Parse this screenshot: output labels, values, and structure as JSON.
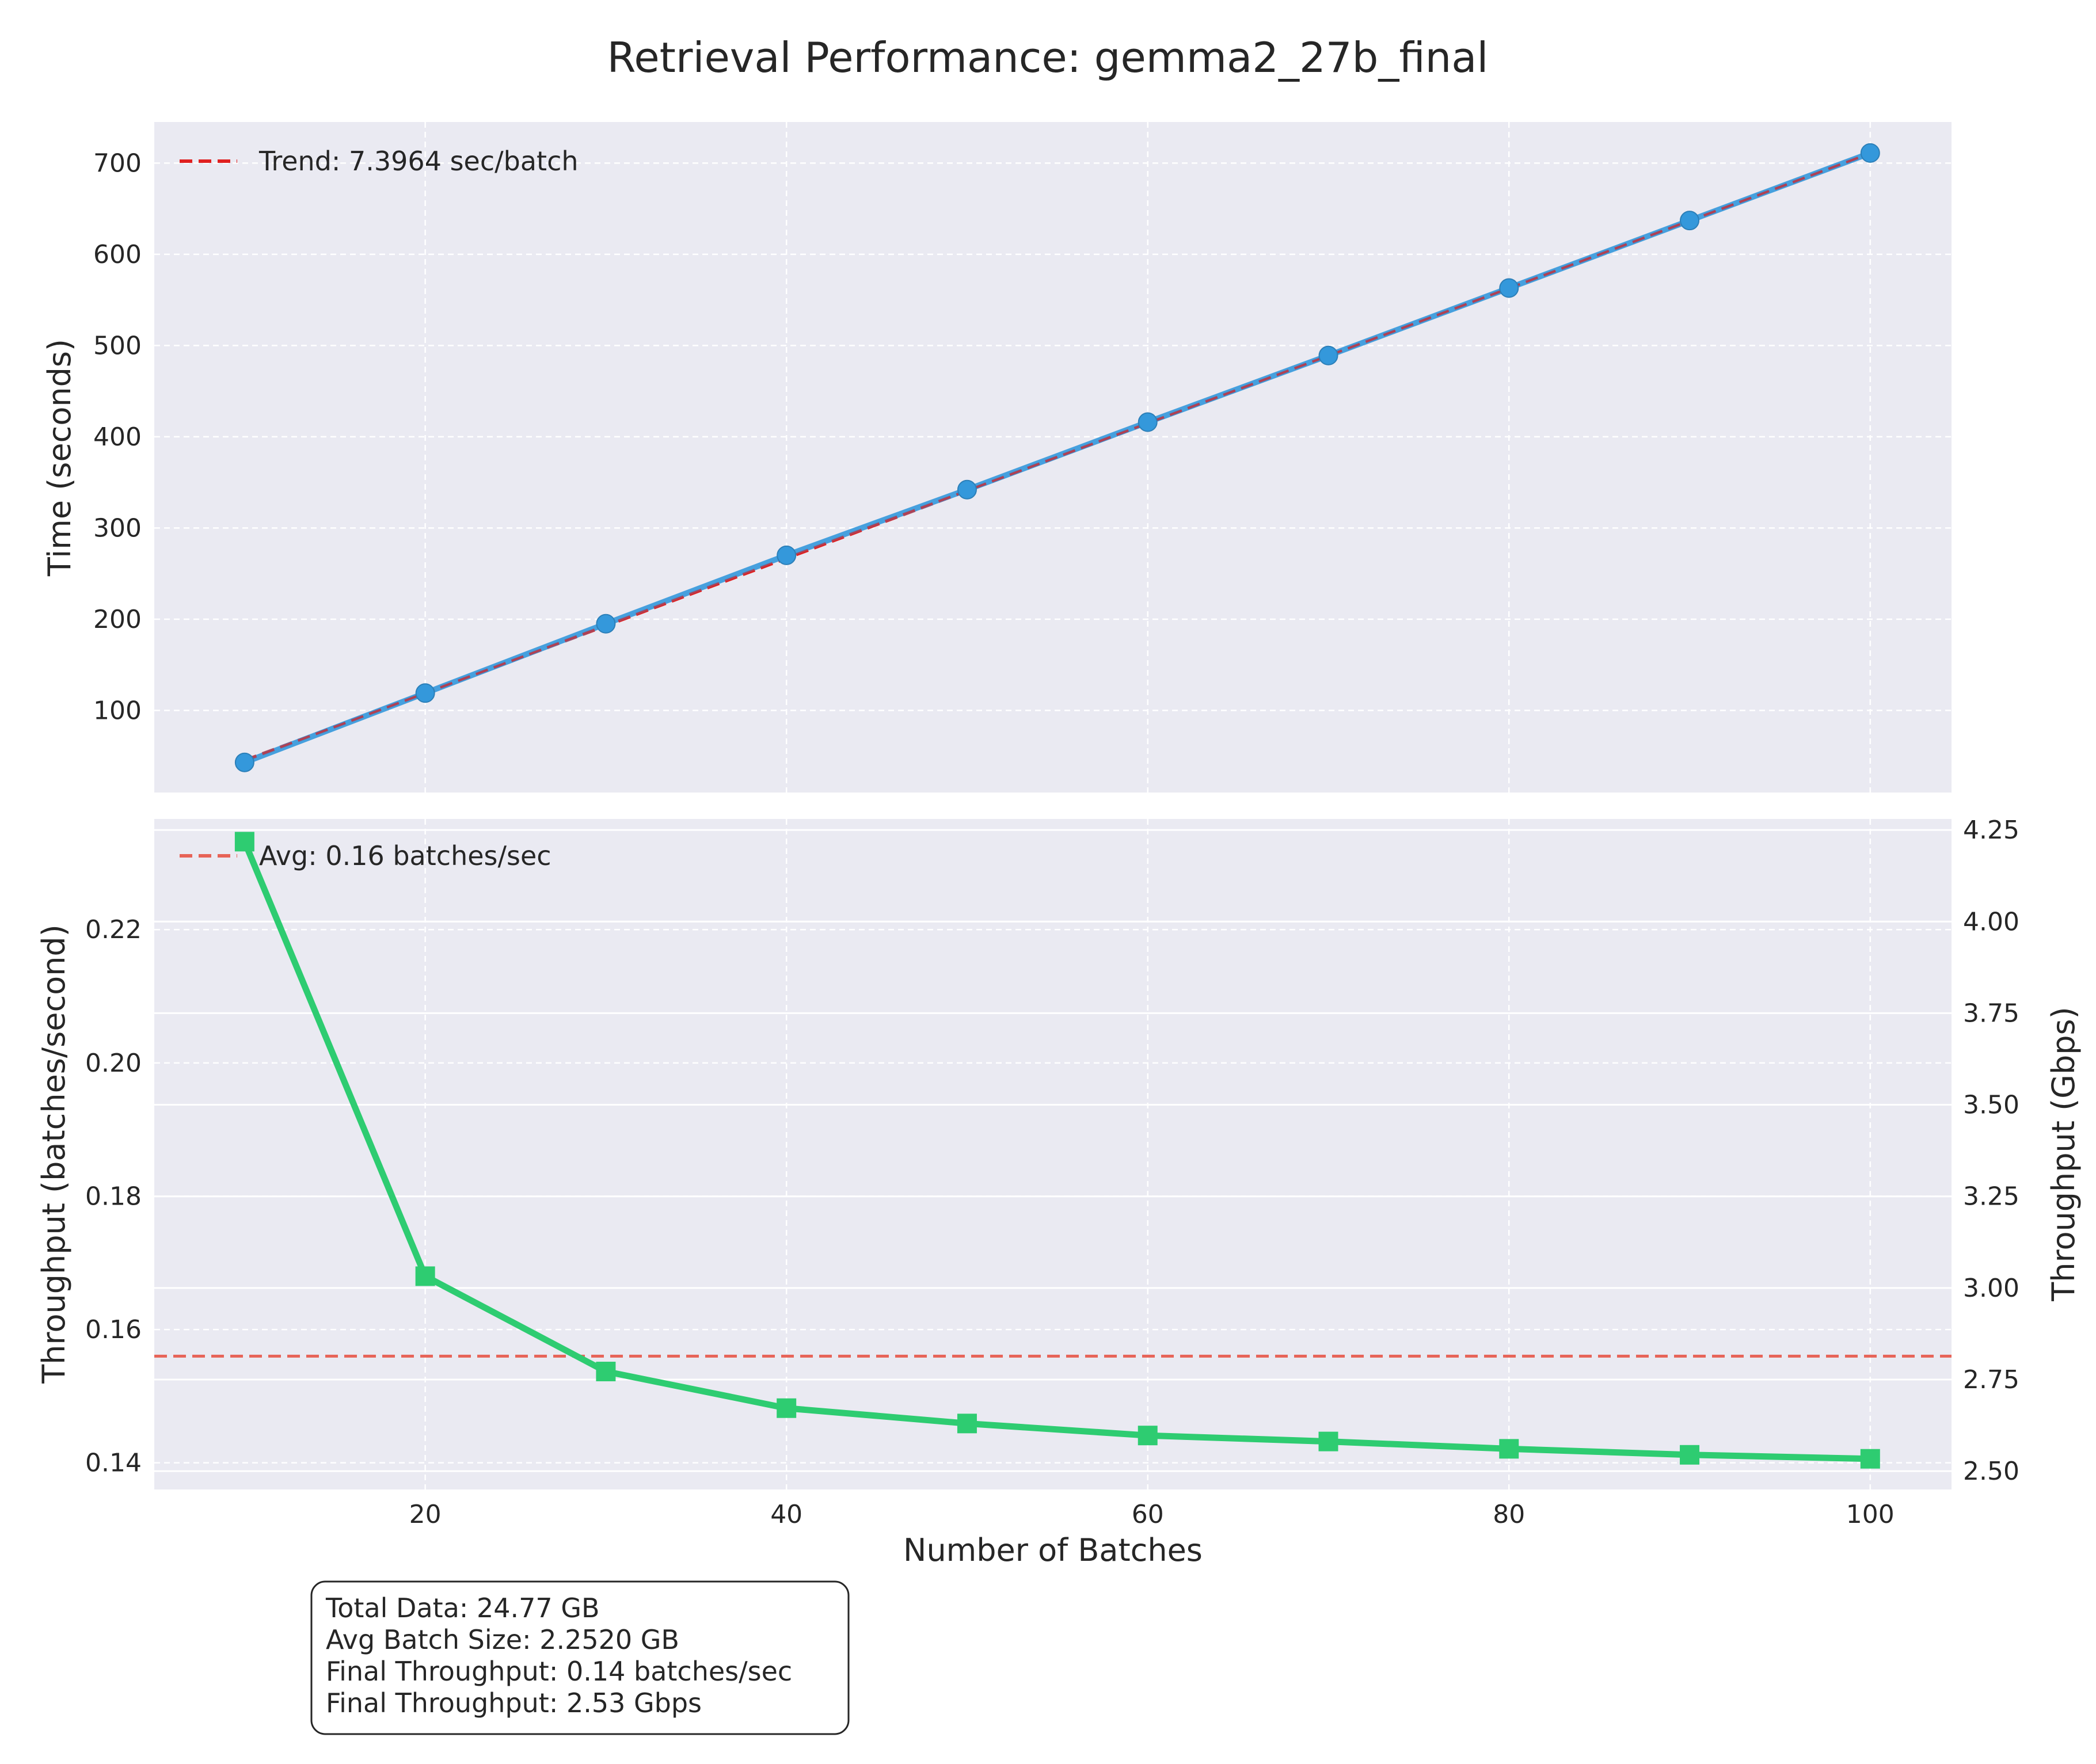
{
  "chart_data": [
    {
      "type": "line",
      "title": "Retrieval Performance: gemma2_27b_final",
      "ylabel": "Time (seconds)",
      "xlim": [
        5,
        104.5
      ],
      "ylim": [
        10,
        745
      ],
      "xticks": [
        20,
        40,
        60,
        80,
        100
      ],
      "yticks": [
        100,
        200,
        300,
        400,
        500,
        600,
        700
      ],
      "grid": true,
      "legend_position": "top-left",
      "x": [
        10,
        20,
        30,
        40,
        50,
        60,
        70,
        80,
        90,
        100
      ],
      "series": [
        {
          "values": [
            43,
            119,
            195,
            270,
            342,
            416,
            489,
            563,
            637,
            711
          ],
          "color": "#3498db",
          "marker": "circle"
        },
        {
          "name": "Trend: 7.3964 sec/batch",
          "type": "trend",
          "start": [
            10,
            45
          ],
          "end": [
            100,
            710.7
          ],
          "color": "#e02020",
          "style": "dashed"
        }
      ]
    },
    {
      "type": "line",
      "xlabel": "Number of Batches",
      "ylabel": "Throughput (batches/second)",
      "ylabel_right": "Throughput (Gbps)",
      "xlim": [
        5,
        104.5
      ],
      "ylim": [
        0.136,
        0.2366
      ],
      "ylim_right": [
        2.45,
        4.28
      ],
      "xticks": [
        20,
        40,
        60,
        80,
        100
      ],
      "yticks": [
        0.14,
        0.16,
        0.18,
        0.2,
        0.22
      ],
      "yticks_right": [
        2.5,
        2.75,
        3.0,
        3.25,
        3.5,
        3.75,
        4.0,
        4.25
      ],
      "grid": true,
      "legend_position": "top-left",
      "x": [
        10,
        20,
        30,
        40,
        50,
        60,
        70,
        80,
        90,
        100
      ],
      "series": [
        {
          "values": [
            0.2332,
            0.168,
            0.1537,
            0.1482,
            0.1459,
            0.1441,
            0.1432,
            0.1421,
            0.1412,
            0.1406
          ],
          "color": "#2ecc71",
          "marker": "square"
        },
        {
          "name": "Avg: 0.16 batches/sec",
          "type": "hline",
          "value": 0.156,
          "color": "#e74c3c",
          "style": "dashed"
        }
      ]
    }
  ],
  "info_box": [
    "Total Data: 24.77 GB",
    "Avg Batch Size: 2.2520 GB",
    "Final Throughput: 0.14 batches/sec",
    "Final Throughput: 2.53 Gbps"
  ]
}
